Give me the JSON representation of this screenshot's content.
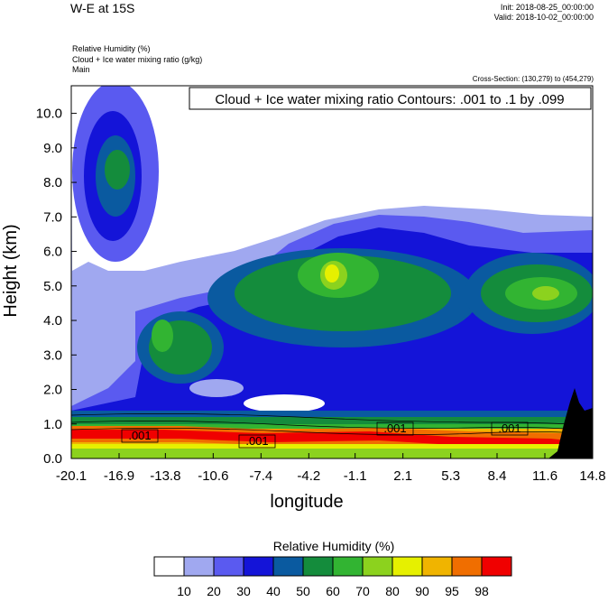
{
  "header": {
    "title": "W-E at 15S",
    "init": "Init: 2018-08-25_00:00:00",
    "valid": "Valid: 2018-10-02_00:00:00",
    "fields": [
      "Relative Humidity   (%)",
      "Cloud + Ice water mixing ratio   (g/kg)",
      "Main"
    ],
    "cross_section": "Cross-Section: (130,279) to (454,279)"
  },
  "chart_data": {
    "type": "heatmap",
    "title": "Relative Humidity  (%)",
    "contour_label": "Cloud + Ice water mixing ratio Contours: .001 to .1 by .099",
    "xlabel": "longitude",
    "ylabel": "Height (km)",
    "xlim": [
      -20.1,
      14.8
    ],
    "ylim": [
      0.0,
      10.8
    ],
    "x_ticks": [
      "-20.1",
      "-16.9",
      "-13.8",
      "-10.6",
      "-7.4",
      "-4.2",
      "-1.1",
      "2.1",
      "5.3",
      "8.4",
      "11.6",
      "14.8"
    ],
    "y_ticks": [
      "0.0",
      "1.0",
      "2.0",
      "3.0",
      "4.0",
      "5.0",
      "6.0",
      "7.0",
      "8.0",
      "9.0",
      "10.0"
    ],
    "colorbar": {
      "levels": [
        "10",
        "20",
        "30",
        "40",
        "50",
        "60",
        "70",
        "80",
        "90",
        "95",
        "98"
      ],
      "colors": [
        "#ffffff",
        "#a0a8f0",
        "#5a5af0",
        "#1414d8",
        "#0a5aa0",
        "#148c3c",
        "#32b432",
        "#8cd21e",
        "#e6f000",
        "#f0b400",
        "#f06e00",
        "#f00000"
      ]
    },
    "contour_labels": [
      ".001",
      ".001",
      ".001",
      ".001"
    ],
    "terrain_color": "#000000"
  }
}
